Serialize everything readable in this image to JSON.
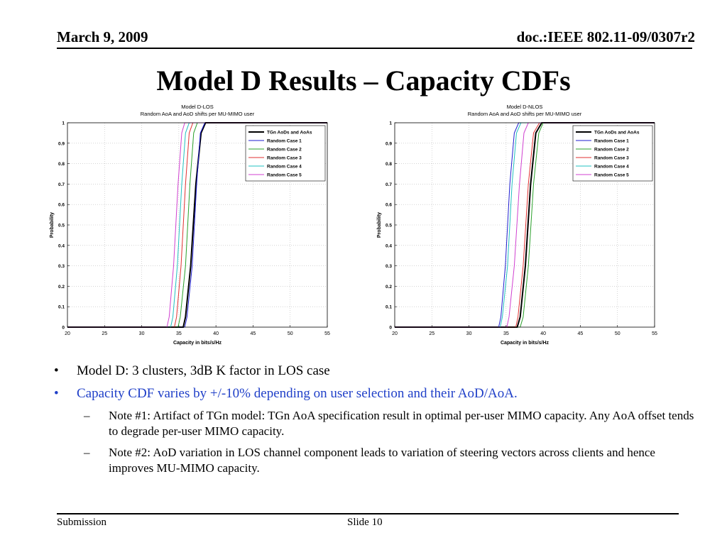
{
  "header": {
    "date": "March 9, 2009",
    "doc": "doc.:IEEE 802.11-09/0307r2"
  },
  "title": "Model D Results – Capacity CDFs",
  "bullets": [
    {
      "text": "Model D: 3 clusters, 3dB K factor in LOS case"
    },
    {
      "text": "Capacity CDF varies by +/-10% depending on user selection and their AoD/AoA."
    }
  ],
  "subbullets": [
    {
      "text": "Note #1: Artifact of TGn model: TGn AoA specification result in optimal per-user MIMO capacity. Any AoA offset tends to degrade per-user MIMO capacity."
    },
    {
      "text": "Note #2: AoD variation in LOS channel component leads to variation of steering vectors across clients and hence improves MU-MIMO capacity."
    }
  ],
  "footer": {
    "left": "Submission",
    "slide": "Slide 10"
  },
  "colors": {
    "text_blue": "#1f3fc8"
  },
  "chart_data": [
    {
      "type": "line",
      "title": "Model D-LOS",
      "subtitle": "Random AoA and AoD shifts per MU-MIMO user",
      "xlabel": "Capacity in bits/s/Hz",
      "ylabel": "Probability",
      "xlim": [
        20,
        55
      ],
      "ylim": [
        0,
        1
      ],
      "xticks": [
        "20",
        "25",
        "30",
        "35",
        "40",
        "45",
        "50",
        "55"
      ],
      "yticks": [
        "0",
        "0.1",
        "0.2",
        "0.3",
        "0.4",
        "0.5",
        "0.6",
        "0.7",
        "0.8",
        "0.9",
        "1"
      ],
      "grid": true,
      "legend": "top-right",
      "series": [
        {
          "name": "TGn AoDs and AoAs",
          "color": "#000000",
          "lw": 2,
          "y": [
            0,
            0.05,
            0.3,
            0.7,
            0.95,
            1
          ],
          "x": [
            35.6,
            35.9,
            36.6,
            37.3,
            38.0,
            38.6
          ]
        },
        {
          "name": "Random Case 1",
          "color": "#1f1fd0",
          "lw": 1,
          "y": [
            0,
            0.05,
            0.3,
            0.7,
            0.95,
            1
          ],
          "x": [
            35.8,
            36.1,
            36.8,
            37.4,
            37.9,
            38.5
          ]
        },
        {
          "name": "Random Case 2",
          "color": "#2aa02a",
          "lw": 1,
          "y": [
            0,
            0.05,
            0.3,
            0.7,
            0.95,
            1
          ],
          "x": [
            34.9,
            35.2,
            35.9,
            36.5,
            37.0,
            37.5
          ]
        },
        {
          "name": "Random Case 3",
          "color": "#e03030",
          "lw": 1,
          "y": [
            0,
            0.05,
            0.3,
            0.7,
            0.95,
            1
          ],
          "x": [
            34.4,
            34.7,
            35.3,
            35.9,
            36.4,
            36.9
          ]
        },
        {
          "name": "Random Case 4",
          "color": "#20c0c0",
          "lw": 1,
          "y": [
            0,
            0.05,
            0.3,
            0.7,
            0.95,
            1
          ],
          "x": [
            33.9,
            34.2,
            34.8,
            35.4,
            35.9,
            36.4
          ]
        },
        {
          "name": "Random Case 5",
          "color": "#d040d0",
          "lw": 1,
          "y": [
            0,
            0.05,
            0.3,
            0.7,
            0.95,
            1
          ],
          "x": [
            33.4,
            33.7,
            34.3,
            34.9,
            35.4,
            35.8
          ]
        }
      ]
    },
    {
      "type": "line",
      "title": "Model D-NLOS",
      "subtitle": "Random AoA and AoD shifts per MU-MIMO user",
      "xlabel": "Capacity in bits/s/Hz",
      "ylabel": "Probability",
      "xlim": [
        20,
        55
      ],
      "ylim": [
        0,
        1
      ],
      "xticks": [
        "20",
        "25",
        "30",
        "35",
        "40",
        "45",
        "50",
        "55"
      ],
      "yticks": [
        "0",
        "0.1",
        "0.2",
        "0.3",
        "0.4",
        "0.5",
        "0.6",
        "0.7",
        "0.8",
        "0.9",
        "1"
      ],
      "grid": true,
      "legend": "top-right",
      "series": [
        {
          "name": "TGn AoDs and AoAs",
          "color": "#000000",
          "lw": 2,
          "y": [
            0,
            0.05,
            0.3,
            0.7,
            0.95,
            1
          ],
          "x": [
            36.5,
            36.9,
            37.6,
            38.3,
            39.0,
            39.8
          ]
        },
        {
          "name": "Random Case 1",
          "color": "#1f1fd0",
          "lw": 1,
          "y": [
            0,
            0.05,
            0.3,
            0.7,
            0.95,
            1
          ],
          "x": [
            34.0,
            34.3,
            34.9,
            35.5,
            36.1,
            36.7
          ]
        },
        {
          "name": "Random Case 2",
          "color": "#2aa02a",
          "lw": 1,
          "y": [
            0,
            0.05,
            0.3,
            0.7,
            0.95,
            1
          ],
          "x": [
            36.9,
            37.3,
            38.0,
            38.7,
            39.4,
            40.0
          ]
        },
        {
          "name": "Random Case 3",
          "color": "#e03030",
          "lw": 1,
          "y": [
            0,
            0.05,
            0.3,
            0.7,
            0.95,
            1
          ],
          "x": [
            36.3,
            36.6,
            37.3,
            38.0,
            38.7,
            39.5
          ]
        },
        {
          "name": "Random Case 4",
          "color": "#20c0c0",
          "lw": 1,
          "y": [
            0,
            0.05,
            0.3,
            0.7,
            0.95,
            1
          ],
          "x": [
            34.2,
            34.5,
            35.2,
            35.8,
            36.4,
            37.0
          ]
        },
        {
          "name": "Random Case 5",
          "color": "#d040d0",
          "lw": 1,
          "y": [
            0,
            0.05,
            0.3,
            0.7,
            0.95,
            1
          ],
          "x": [
            35.1,
            35.4,
            36.1,
            36.8,
            37.4,
            38.0
          ]
        }
      ]
    }
  ]
}
